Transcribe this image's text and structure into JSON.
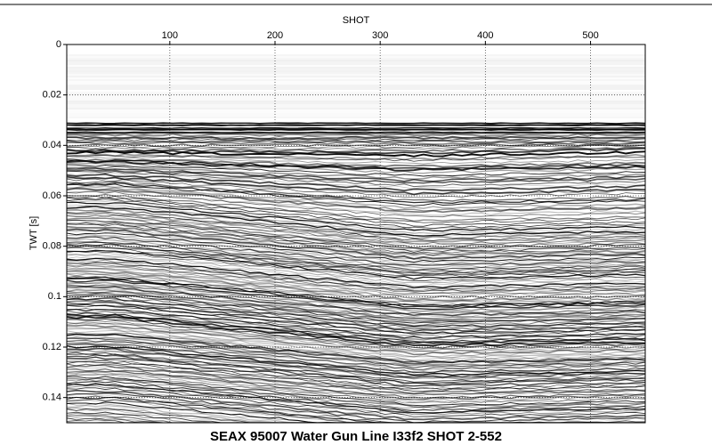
{
  "chart_data": {
    "type": "seismic",
    "title": "SEAX 95007 Water Gun Line I33f2 SHOT 2-552",
    "x_label": "SHOT",
    "y_label": "TWT [s]",
    "xlim": [
      2,
      552
    ],
    "xticks": [
      100,
      200,
      300,
      400,
      500
    ],
    "ylim": [
      0,
      0.15
    ],
    "yticks": [
      0,
      0.02,
      0.04,
      0.06,
      0.08,
      0.1,
      0.12,
      0.14
    ],
    "y_inverted": true,
    "x_axis_position": "top",
    "grid": true
  }
}
